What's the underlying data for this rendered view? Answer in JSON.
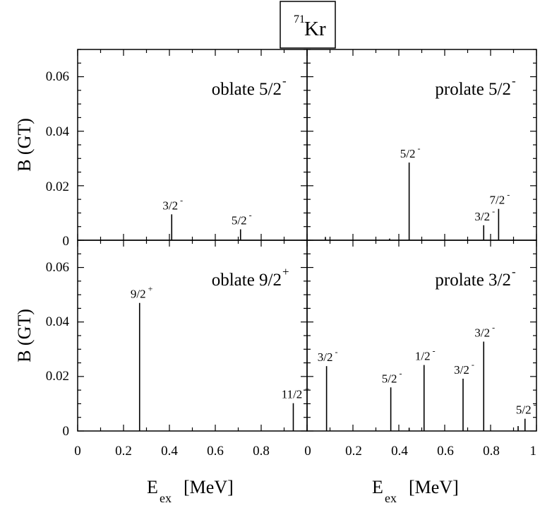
{
  "figure": {
    "title_base": "Kr",
    "title_mass": "71",
    "ylabel": "B (GT)",
    "xlabel_main": "E",
    "xlabel_sub": "ex",
    "xlabel_unit": "[MeV]",
    "x_ticks_left": [
      "0",
      "0.2",
      "0.4",
      "0.6",
      "0.8",
      "1"
    ],
    "x_ticks_right": [
      "0",
      "0.2",
      "0.4",
      "0.6",
      "0.8",
      "1"
    ],
    "y_ticks": [
      "0",
      "0.02",
      "0.04",
      "0.06"
    ]
  },
  "chart_data": [
    {
      "type": "bar",
      "panel": "top-left",
      "label_main": "oblate 5/2",
      "label_sup": "-",
      "xlim": [
        0,
        1
      ],
      "ylim": [
        0,
        0.07
      ],
      "lines": [
        {
          "x": 0.41,
          "y": 0.0095,
          "label": "3/2",
          "sup": "-"
        },
        {
          "x": 0.71,
          "y": 0.004,
          "label": "5/2",
          "sup": "-"
        }
      ]
    },
    {
      "type": "bar",
      "panel": "top-right",
      "label_main": "prolate 5/2",
      "label_sup": "-",
      "xlim": [
        0,
        1
      ],
      "ylim": [
        0,
        0.07
      ],
      "lines": [
        {
          "x": 0.08,
          "y": 0.0012,
          "label": "",
          "sup": ""
        },
        {
          "x": 0.36,
          "y": 0.0006,
          "label": "",
          "sup": ""
        },
        {
          "x": 0.445,
          "y": 0.0285,
          "label": "5/2",
          "sup": "-"
        },
        {
          "x": 0.77,
          "y": 0.0055,
          "label": "3/2",
          "sup": "-"
        },
        {
          "x": 0.835,
          "y": 0.0115,
          "label": "7/2",
          "sup": "-"
        }
      ]
    },
    {
      "type": "bar",
      "panel": "bottom-left",
      "label_main": "oblate 9/2",
      "label_sup": "+",
      "xlim": [
        0,
        1
      ],
      "ylim": [
        0,
        0.07
      ],
      "lines": [
        {
          "x": 0.27,
          "y": 0.047,
          "label": "9/2",
          "sup": "+"
        },
        {
          "x": 0.94,
          "y": 0.0102,
          "label": "11/2",
          "sup": "+"
        }
      ]
    },
    {
      "type": "bar",
      "panel": "bottom-right",
      "label_main": "prolate  3/2",
      "label_sup": "-",
      "xlim": [
        0,
        1
      ],
      "ylim": [
        0,
        0.07
      ],
      "lines": [
        {
          "x": 0.085,
          "y": 0.0238,
          "label": "3/2",
          "sup": "-"
        },
        {
          "x": 0.365,
          "y": 0.016,
          "label": "5/2",
          "sup": "-"
        },
        {
          "x": 0.445,
          "y": 0.0012,
          "label": "",
          "sup": ""
        },
        {
          "x": 0.51,
          "y": 0.0242,
          "label": "1/2",
          "sup": "-"
        },
        {
          "x": 0.68,
          "y": 0.0192,
          "label": "3/2",
          "sup": "-"
        },
        {
          "x": 0.77,
          "y": 0.0328,
          "label": "3/2",
          "sup": "-"
        },
        {
          "x": 0.92,
          "y": 0.0018,
          "label": "",
          "sup": ""
        },
        {
          "x": 0.95,
          "y": 0.0045,
          "label": "5/2",
          "sup": "-"
        }
      ]
    }
  ]
}
